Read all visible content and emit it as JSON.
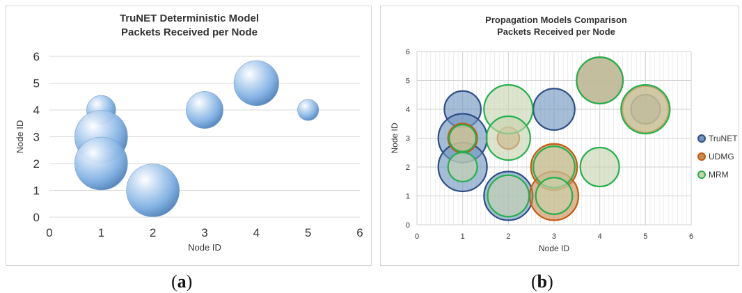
{
  "chart_data": [
    {
      "type": "bubble",
      "title_lines": [
        "TruNET Deterministic Model",
        "Packets Received per Node"
      ],
      "xlabel": "Node ID",
      "ylabel": "Node ID",
      "xlim": [
        0,
        6
      ],
      "ylim": [
        0,
        6
      ],
      "xticks": [
        "0",
        "1",
        "2",
        "3",
        "4",
        "5",
        "6"
      ],
      "yticks": [
        "0",
        "1",
        "2",
        "3",
        "4",
        "5",
        "6"
      ],
      "grid": "horizontal",
      "legend": "none",
      "series": [
        {
          "color": "#7fb0e3",
          "points": [
            {
              "x": 1,
              "y": 4,
              "size": 0.55
            },
            {
              "x": 1,
              "y": 3,
              "size": 1.0
            },
            {
              "x": 1,
              "y": 2,
              "size": 1.0
            },
            {
              "x": 2,
              "y": 1,
              "size": 1.0
            },
            {
              "x": 3,
              "y": 4,
              "size": 0.7
            },
            {
              "x": 4,
              "y": 5,
              "size": 0.85
            },
            {
              "x": 5,
              "y": 4,
              "size": 0.4
            }
          ]
        }
      ]
    },
    {
      "type": "bubble",
      "title_lines": [
        "Propagation Models Comparison",
        "Packets Received per Node"
      ],
      "xlabel": "Node ID",
      "ylabel": "Node ID",
      "xlim": [
        0,
        6
      ],
      "ylim": [
        0,
        6
      ],
      "xticks": [
        "0",
        "1",
        "2",
        "3",
        "4",
        "5",
        "6"
      ],
      "yticks": [
        "0",
        "1",
        "2",
        "3",
        "4",
        "5",
        "6"
      ],
      "grid": "both",
      "legend": "right",
      "series": [
        {
          "name": "TruNET",
          "fill": "#7094bf",
          "stroke": "#2f4f86",
          "points": [
            {
              "x": 1,
              "y": 4,
              "size": 0.75
            },
            {
              "x": 1,
              "y": 3,
              "size": 1.0
            },
            {
              "x": 1,
              "y": 2,
              "size": 1.0
            },
            {
              "x": 2,
              "y": 1,
              "size": 1.0
            },
            {
              "x": 3,
              "y": 4,
              "size": 0.85
            },
            {
              "x": 4,
              "y": 5,
              "size": 0.95
            },
            {
              "x": 5,
              "y": 4,
              "size": 0.6
            }
          ]
        },
        {
          "name": "UDMG",
          "fill": "#c98b53",
          "stroke": "#c55a11",
          "points": [
            {
              "x": 1,
              "y": 3,
              "size": 0.6
            },
            {
              "x": 2,
              "y": 3,
              "size": 0.45
            },
            {
              "x": 3,
              "y": 2,
              "size": 0.95
            },
            {
              "x": 3,
              "y": 1,
              "size": 1.0
            },
            {
              "x": 4,
              "y": 5,
              "size": 0.95
            },
            {
              "x": 5,
              "y": 4,
              "size": 0.95
            }
          ]
        },
        {
          "name": "MRM",
          "fill": "#c8d3ae",
          "stroke": "#22b14c",
          "points": [
            {
              "x": 1,
              "y": 3,
              "size": 0.55
            },
            {
              "x": 1,
              "y": 2,
              "size": 0.6
            },
            {
              "x": 2,
              "y": 4,
              "size": 1.0
            },
            {
              "x": 2,
              "y": 3,
              "size": 0.9
            },
            {
              "x": 2,
              "y": 1,
              "size": 0.85
            },
            {
              "x": 3,
              "y": 2,
              "size": 0.85
            },
            {
              "x": 3,
              "y": 1,
              "size": 0.75
            },
            {
              "x": 4,
              "y": 5,
              "size": 0.95
            },
            {
              "x": 4,
              "y": 2,
              "size": 0.8
            },
            {
              "x": 5,
              "y": 4,
              "size": 1.0
            }
          ]
        }
      ]
    }
  ],
  "figure": {
    "label_a": "a",
    "label_b": "b"
  }
}
